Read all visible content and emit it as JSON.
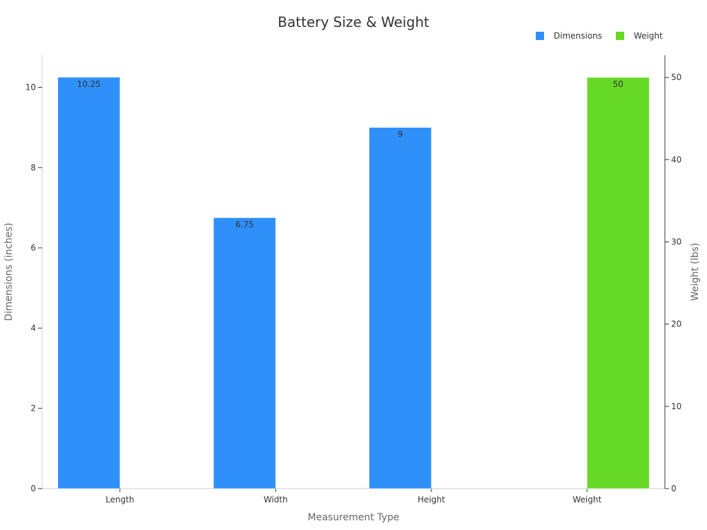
{
  "chart_data": {
    "type": "bar",
    "title": "Battery Size & Weight",
    "xlabel": "Measurement Type",
    "ylabel": "Dimensions (inches)",
    "ylabel_right": "Weight (lbs)",
    "categories": [
      "Length",
      "Width",
      "Height",
      "Weight"
    ],
    "series": [
      {
        "name": "Dimensions",
        "axis": "left",
        "color": "#2f90f9",
        "values": [
          10.25,
          6.75,
          9,
          null
        ],
        "labels": [
          "10.25",
          "6.75",
          "9",
          ""
        ]
      },
      {
        "name": "Weight",
        "axis": "right",
        "color": "#66d926",
        "values": [
          null,
          null,
          null,
          50
        ],
        "labels": [
          "",
          "",
          "",
          "50"
        ]
      }
    ],
    "ylim_left": [
      0,
      10.8
    ],
    "ylim_right": [
      0,
      52.7
    ],
    "yticks_left": [
      0,
      2,
      4,
      6,
      8,
      10
    ],
    "yticks_right": [
      0,
      10,
      20,
      30,
      40,
      50
    ],
    "grid": false,
    "legend_position": "top-right"
  }
}
